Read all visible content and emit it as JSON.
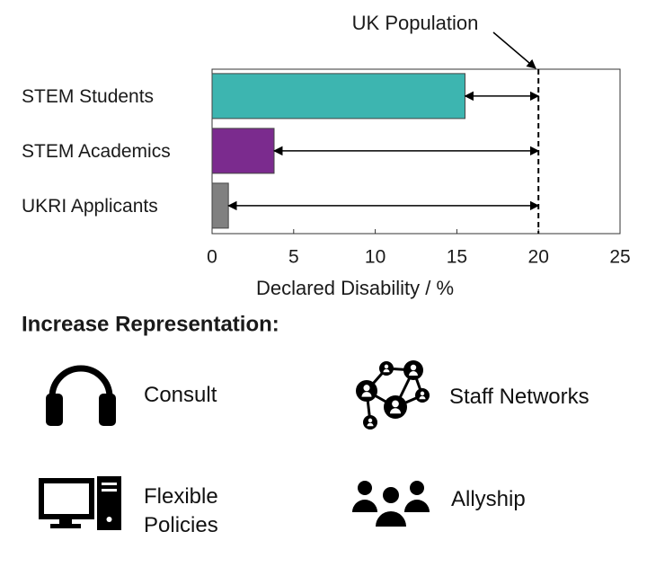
{
  "chart_data": {
    "type": "hbar",
    "categories": [
      "STEM Students",
      "STEM Academics",
      "UKRI Applicants"
    ],
    "values": [
      15.5,
      3.8,
      1.0
    ],
    "colors": [
      "#3db5b0",
      "#7b2b8e",
      "#808080"
    ],
    "xlim": [
      0,
      25
    ],
    "xticks": [
      0,
      5,
      10,
      15,
      20,
      25
    ],
    "xlabel": "Declared Disability / %",
    "reference_line": {
      "value": 20,
      "label": "UK Population"
    }
  },
  "actions": {
    "title": "Increase Representation:",
    "items": [
      "Consult",
      "Staff Networks",
      "Flexible Policies",
      "Allyship"
    ]
  }
}
